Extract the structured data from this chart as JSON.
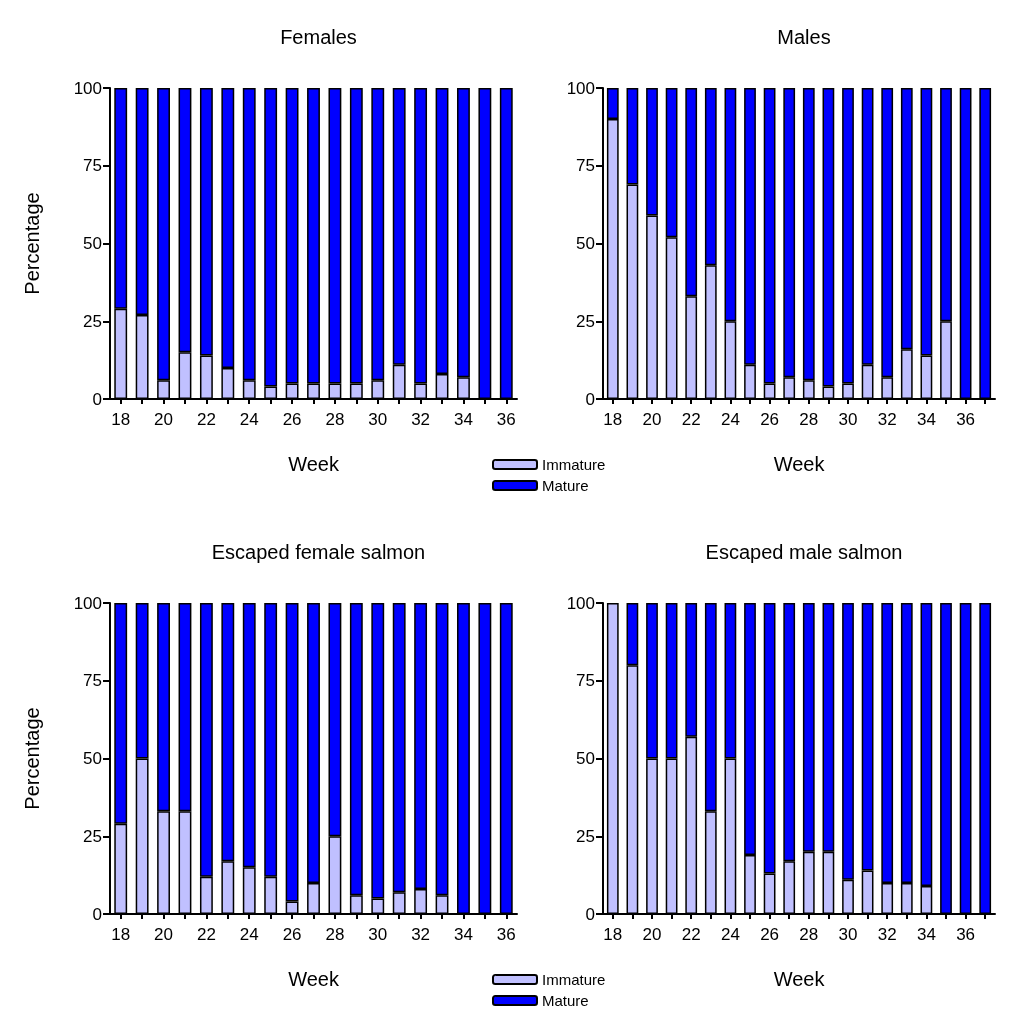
{
  "chart_data": [
    {
      "type": "bar",
      "title": "Females",
      "xlabel": "Week",
      "ylabel": "Percentage",
      "stacked": true,
      "legend": "bottom right",
      "grid": false,
      "categories": [
        "18",
        null,
        "20",
        null,
        "22",
        null,
        "24",
        null,
        "26",
        null,
        "28",
        null,
        "30",
        null,
        "32",
        null,
        "34",
        null,
        "36"
      ],
      "ylim": [
        0,
        100
      ],
      "yticks": [
        0,
        25,
        50,
        75,
        100
      ],
      "series": [
        {
          "name": "Immature",
          "color": "#c0c0ff",
          "values": [
            29,
            27,
            6,
            15,
            14,
            10,
            6,
            4,
            5,
            5,
            5,
            5,
            6,
            11,
            5,
            8,
            7,
            0,
            0
          ]
        },
        {
          "name": "Mature",
          "color": "#0000ff",
          "values": [
            71,
            73,
            94,
            85,
            86,
            90,
            94,
            96,
            95,
            95,
            95,
            95,
            94,
            89,
            95,
            92,
            93,
            100,
            100
          ]
        }
      ]
    },
    {
      "type": "bar",
      "title": "Males",
      "xlabel": "Week",
      "stacked": true,
      "grid": false,
      "categories": [
        "18",
        null,
        "20",
        null,
        "22",
        null,
        "24",
        null,
        "26",
        null,
        "28",
        null,
        "30",
        null,
        "32",
        null,
        "34",
        null,
        "36",
        null
      ],
      "ylim": [
        0,
        100
      ],
      "yticks": [
        0,
        25,
        50,
        75,
        100
      ],
      "series": [
        {
          "color": "#c0c0ff",
          "values": [
            90,
            69,
            59,
            52,
            33,
            43,
            25,
            11,
            5,
            7,
            6,
            4,
            5,
            11,
            7,
            16,
            14,
            25,
            0,
            0
          ]
        },
        {
          "color": "#0000ff",
          "values": [
            10,
            31,
            41,
            48,
            67,
            57,
            75,
            89,
            95,
            93,
            94,
            96,
            95,
            89,
            93,
            84,
            86,
            75,
            100,
            100
          ]
        }
      ]
    },
    {
      "type": "bar",
      "title": "Escaped female salmon",
      "xlabel": "Week",
      "ylabel": "Percentage",
      "stacked": true,
      "legend": "bottom right",
      "grid": false,
      "categories": [
        "18",
        null,
        "20",
        null,
        "22",
        null,
        "24",
        null,
        "26",
        null,
        "28",
        null,
        "30",
        null,
        "32",
        null,
        "34",
        null,
        "36"
      ],
      "ylim": [
        0,
        100
      ],
      "yticks": [
        0,
        25,
        50,
        75,
        100
      ],
      "series": [
        {
          "name": "Immature",
          "color": "#c0c0ff",
          "values": [
            29,
            50,
            33,
            33,
            12,
            17,
            15,
            12,
            4,
            10,
            25,
            6,
            5,
            7,
            8,
            6,
            0,
            0,
            0
          ]
        },
        {
          "name": "Mature",
          "color": "#0000ff",
          "values": [
            71,
            50,
            67,
            67,
            88,
            83,
            85,
            88,
            96,
            90,
            75,
            94,
            95,
            93,
            92,
            94,
            100,
            100,
            100
          ]
        }
      ]
    },
    {
      "type": "bar",
      "title": "Escaped male salmon",
      "xlabel": "Week",
      "stacked": true,
      "grid": false,
      "categories": [
        "18",
        null,
        "20",
        null,
        "22",
        null,
        "24",
        null,
        "26",
        null,
        "28",
        null,
        "30",
        null,
        "32",
        null,
        "34",
        null,
        "36",
        null
      ],
      "ylim": [
        0,
        100
      ],
      "yticks": [
        0,
        25,
        50,
        75,
        100
      ],
      "series": [
        {
          "color": "#c0c0ff",
          "values": [
            100,
            80,
            50,
            50,
            57,
            33,
            50,
            19,
            13,
            17,
            20,
            20,
            11,
            14,
            10,
            10,
            9,
            0,
            0,
            0
          ]
        },
        {
          "color": "#0000ff",
          "values": [
            0,
            20,
            50,
            50,
            43,
            67,
            50,
            81,
            87,
            83,
            80,
            80,
            89,
            86,
            90,
            90,
            91,
            100,
            100,
            100
          ]
        }
      ]
    }
  ]
}
